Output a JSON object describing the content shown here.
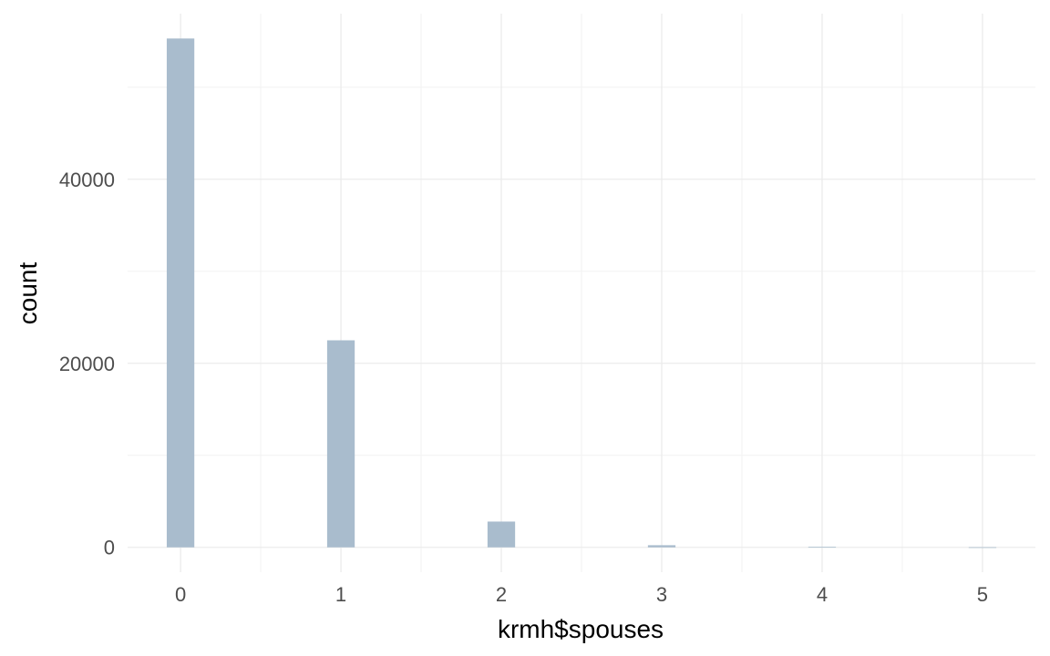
{
  "chart_data": {
    "type": "bar",
    "subtype": "histogram",
    "title": "",
    "xlabel": "krmh$spouses",
    "ylabel": "count",
    "x_ticks": [
      "0",
      "1",
      "2",
      "3",
      "4",
      "5"
    ],
    "y_ticks": [
      "0",
      "20000",
      "40000"
    ],
    "xlim": [
      -0.33,
      5.33
    ],
    "ylim": [
      -2700,
      58000
    ],
    "bin_width": 0.172,
    "bins": [
      {
        "x": 0,
        "count": 55300
      },
      {
        "x": 1,
        "count": 22500
      },
      {
        "x": 2,
        "count": 2800
      },
      {
        "x": 3,
        "count": 230
      },
      {
        "x": 4,
        "count": 50
      },
      {
        "x": 5,
        "count": 15
      }
    ],
    "grid": true,
    "colors": {
      "bar_fill": "#a9bccd",
      "grid_major": "#ebebeb",
      "grid_minor": "#f2f2f2"
    }
  }
}
